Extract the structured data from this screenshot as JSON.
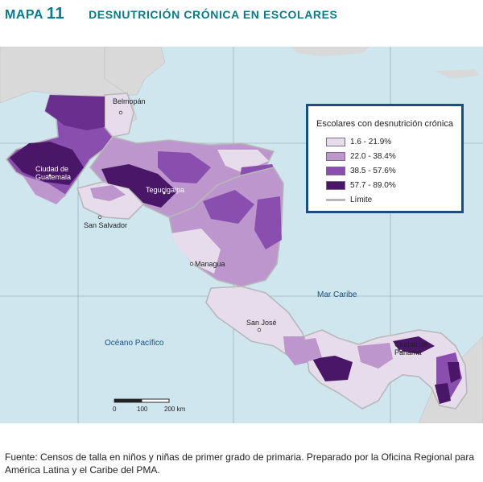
{
  "header": {
    "map_label": "MAPA",
    "map_number": "11",
    "title": "DESNUTRICIÓN CRÓNICA EN ESCOLARES"
  },
  "legend": {
    "title": "Escolares con desnutrición crónica",
    "classes": [
      {
        "label": "1.6 - 21.9%",
        "color": "#e6dcec"
      },
      {
        "label": "22.0 - 38.4%",
        "color": "#bc96cc"
      },
      {
        "label": "38.5 - 57.6%",
        "color": "#8a4fae"
      },
      {
        "label": "57.7 - 89.0%",
        "color": "#4a1668"
      }
    ],
    "boundary_label": "Límite",
    "boundary_color": "#b8b8b8"
  },
  "places": {
    "belmopan": "Belmopán",
    "guatemala": "Ciudad de Guatemala",
    "tegucigalpa": "Tegucigalpa",
    "san_salvador": "San Salvador",
    "managua": "Managua",
    "san_jose": "San José",
    "panama": "Ciudad de Panamá"
  },
  "water": {
    "caribbean": "Mar Caribe",
    "pacific": "Océano Pacífico",
    "color": "#cfe6ef"
  },
  "scale": {
    "ticks": [
      "0",
      "100",
      "200 km"
    ]
  },
  "source": "Fuente: Censos de talla en niños y niñas de primer grado de primaria. Preparado por la Oficina Regional para América Latina y el Caribe del PMA."
}
